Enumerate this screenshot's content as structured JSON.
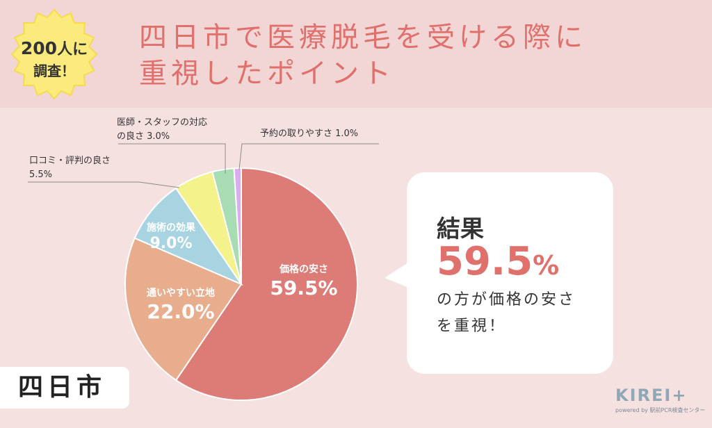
{
  "badge": {
    "number": "200",
    "suffix": "人に",
    "line2": "調査！"
  },
  "title": {
    "line1": "四日市で医療脱毛を受ける際に",
    "line2": "重視したポイント"
  },
  "chart_data": {
    "type": "pie",
    "start_angle_deg": 0,
    "direction": "clockwise",
    "slices": [
      {
        "label": "価格の安さ",
        "value": 59.5,
        "value_label": "59.5%",
        "color": "#dd7b76"
      },
      {
        "label": "通いやすい立地",
        "value": 22.0,
        "value_label": "22.0%",
        "color": "#e8ad8d"
      },
      {
        "label": "施術の効果",
        "value": 9.0,
        "value_label": "9.0%",
        "color": "#a8d4e2"
      },
      {
        "label": "口コミ・評判の良さ",
        "value": 5.5,
        "value_label": "5.5%",
        "color": "#f4f28a"
      },
      {
        "label": "医師・スタッフの対応の良さ",
        "value": 3.0,
        "value_label": "3.0%",
        "color": "#a8dcb2"
      },
      {
        "label": "予約の取りやすさ",
        "value": 1.0,
        "value_label": "1.0%",
        "color": "#d9aef0"
      }
    ],
    "callouts": {
      "staff_line1": "医師・スタッフの対応",
      "staff_line2": "の良さ 3.0%",
      "reservation": "予約の取りやすさ 1.0%",
      "review_line1": "口コミ・評判の良さ",
      "review_line2": "5.5%"
    }
  },
  "result": {
    "heading": "結果",
    "percent_number": "59.5",
    "percent_sign": "%",
    "text_line1": "の方が価格の安さ",
    "text_line2": "を重視！"
  },
  "city": "四日市",
  "logo": {
    "name": "KIREI+",
    "sub": "powered by 駅前PCR検査センター"
  }
}
